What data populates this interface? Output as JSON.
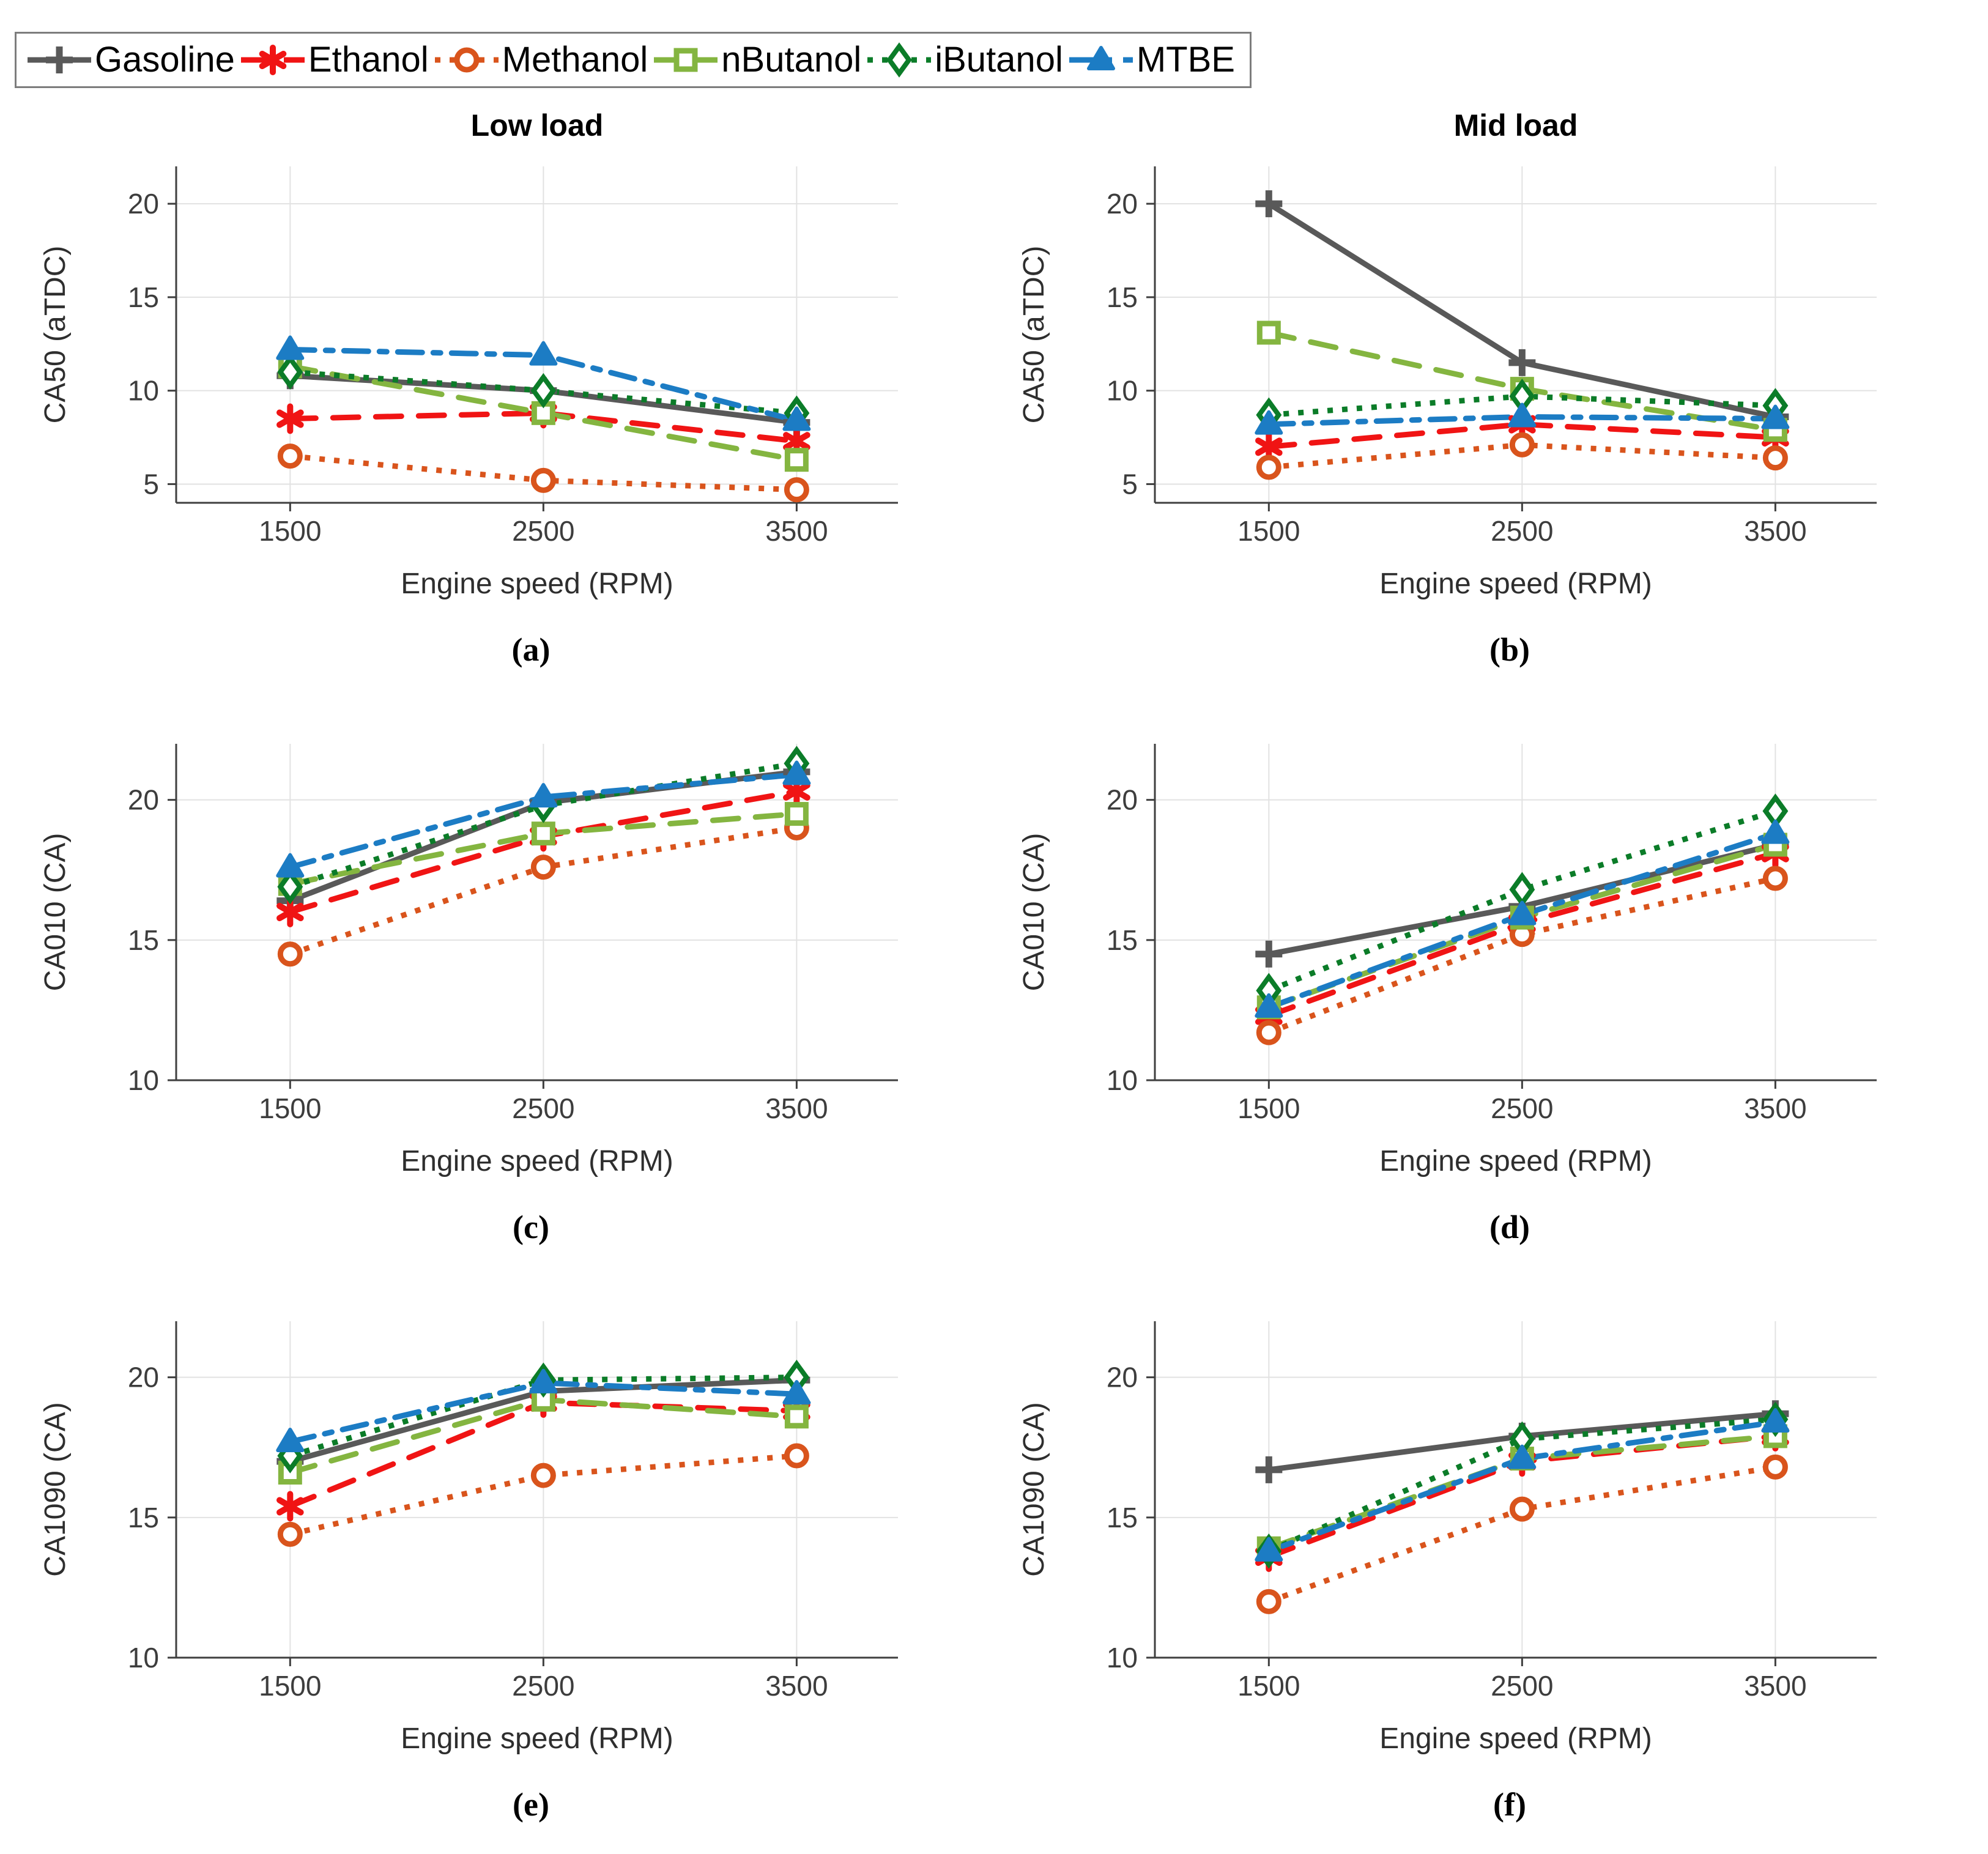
{
  "figure": {
    "column_titles": [
      "Low load",
      "Mid load"
    ],
    "xlabel": "Engine speed (RPM)",
    "x_categories": [
      1500,
      2500,
      3500
    ]
  },
  "legend": {
    "items": [
      {
        "label": "Gasoline",
        "color": "#595959",
        "marker": "plus",
        "dash": "solid"
      },
      {
        "label": "Ethanol",
        "color": "#f01414",
        "marker": "asterisk",
        "dash": "dashed"
      },
      {
        "label": "Methanol",
        "color": "#d9541c",
        "marker": "circle",
        "dash": "dotted"
      },
      {
        "label": "nButanol",
        "color": "#84b540",
        "marker": "square",
        "dash": "dashed"
      },
      {
        "label": "iButanol",
        "color": "#0b7c28",
        "marker": "diamond",
        "dash": "dotted"
      },
      {
        "label": "MTBE",
        "color": "#1c7cc4",
        "marker": "triangle",
        "dash": "dashdot"
      }
    ]
  },
  "chart_data": [
    {
      "id": "a",
      "type": "line",
      "caption": "(a)",
      "title": "Low load",
      "ylabel": "CA50 (aTDC)",
      "xlabel": "Engine speed (RPM)",
      "x": [
        1500,
        2500,
        3500
      ],
      "xticks": [
        1500,
        2500,
        3500
      ],
      "xlim": [
        1050,
        3900
      ],
      "yticks": [
        5,
        10,
        15,
        20
      ],
      "ylim": [
        4,
        22
      ],
      "grid": true,
      "series": [
        {
          "name": "Gasoline",
          "values": [
            10.8,
            10.0,
            8.3
          ]
        },
        {
          "name": "Ethanol",
          "values": [
            8.5,
            8.8,
            7.3
          ]
        },
        {
          "name": "Methanol",
          "values": [
            6.5,
            5.2,
            4.7
          ]
        },
        {
          "name": "nButanol",
          "values": [
            11.3,
            8.8,
            6.3
          ]
        },
        {
          "name": "iButanol",
          "values": [
            11.0,
            10.0,
            8.8
          ]
        },
        {
          "name": "MTBE",
          "values": [
            12.2,
            11.9,
            8.4
          ]
        }
      ]
    },
    {
      "id": "b",
      "type": "line",
      "caption": "(b)",
      "title": "Mid load",
      "ylabel": "CA50 (aTDC)",
      "xlabel": "Engine speed (RPM)",
      "x": [
        1500,
        2500,
        3500
      ],
      "xticks": [
        1500,
        2500,
        3500
      ],
      "xlim": [
        1050,
        3900
      ],
      "yticks": [
        5,
        10,
        15,
        20
      ],
      "ylim": [
        4,
        22
      ],
      "grid": true,
      "series": [
        {
          "name": "Gasoline",
          "values": [
            20.0,
            11.5,
            8.6
          ]
        },
        {
          "name": "Ethanol",
          "values": [
            7.0,
            8.2,
            7.5
          ]
        },
        {
          "name": "Methanol",
          "values": [
            5.9,
            7.1,
            6.4
          ]
        },
        {
          "name": "nButanol",
          "values": [
            13.1,
            10.1,
            7.9
          ]
        },
        {
          "name": "iButanol",
          "values": [
            8.7,
            9.7,
            9.2
          ]
        },
        {
          "name": "MTBE",
          "values": [
            8.2,
            8.6,
            8.5
          ]
        }
      ]
    },
    {
      "id": "c",
      "type": "line",
      "caption": "(c)",
      "title": "",
      "ylabel": "CA010 (CA)",
      "xlabel": "Engine speed (RPM)",
      "x": [
        1500,
        2500,
        3500
      ],
      "xticks": [
        1500,
        2500,
        3500
      ],
      "xlim": [
        1050,
        3900
      ],
      "yticks": [
        10,
        15,
        20
      ],
      "ylim": [
        10,
        22
      ],
      "grid": true,
      "series": [
        {
          "name": "Gasoline",
          "values": [
            16.4,
            19.9,
            21.0
          ]
        },
        {
          "name": "Ethanol",
          "values": [
            16.0,
            18.7,
            20.3
          ]
        },
        {
          "name": "Methanol",
          "values": [
            14.5,
            17.6,
            19.0
          ]
        },
        {
          "name": "nButanol",
          "values": [
            17.0,
            18.8,
            19.5
          ]
        },
        {
          "name": "iButanol",
          "values": [
            16.9,
            19.8,
            21.3
          ]
        },
        {
          "name": "MTBE",
          "values": [
            17.6,
            20.1,
            20.9
          ]
        }
      ]
    },
    {
      "id": "d",
      "type": "line",
      "caption": "(d)",
      "title": "",
      "ylabel": "CA010 (CA)",
      "xlabel": "Engine speed (RPM)",
      "x": [
        1500,
        2500,
        3500
      ],
      "xticks": [
        1500,
        2500,
        3500
      ],
      "xlim": [
        1050,
        3900
      ],
      "yticks": [
        10,
        15,
        20
      ],
      "ylim": [
        10,
        22
      ],
      "grid": true,
      "series": [
        {
          "name": "Gasoline",
          "values": [
            14.5,
            16.2,
            18.4
          ]
        },
        {
          "name": "Ethanol",
          "values": [
            12.3,
            15.6,
            18.1
          ]
        },
        {
          "name": "Methanol",
          "values": [
            11.7,
            15.2,
            17.2
          ]
        },
        {
          "name": "nButanol",
          "values": [
            12.6,
            15.8,
            18.4
          ]
        },
        {
          "name": "iButanol",
          "values": [
            13.2,
            16.8,
            19.6
          ]
        },
        {
          "name": "MTBE",
          "values": [
            12.6,
            15.9,
            18.8
          ]
        }
      ]
    },
    {
      "id": "e",
      "type": "line",
      "caption": "(e)",
      "title": "",
      "ylabel": "CA1090 (CA)",
      "xlabel": "Engine speed (RPM)",
      "x": [
        1500,
        2500,
        3500
      ],
      "xticks": [
        1500,
        2500,
        3500
      ],
      "xlim": [
        1050,
        3900
      ],
      "yticks": [
        10,
        15,
        20
      ],
      "ylim": [
        10,
        22
      ],
      "grid": true,
      "series": [
        {
          "name": "Gasoline",
          "values": [
            17.0,
            19.5,
            19.9
          ]
        },
        {
          "name": "Ethanol",
          "values": [
            15.4,
            19.1,
            18.8
          ]
        },
        {
          "name": "Methanol",
          "values": [
            14.4,
            16.5,
            17.2
          ]
        },
        {
          "name": "nButanol",
          "values": [
            16.6,
            19.2,
            18.6
          ]
        },
        {
          "name": "iButanol",
          "values": [
            17.2,
            19.9,
            20.0
          ]
        },
        {
          "name": "MTBE",
          "values": [
            17.7,
            19.8,
            19.4
          ]
        }
      ]
    },
    {
      "id": "f",
      "type": "line",
      "caption": "(f)",
      "title": "",
      "ylabel": "CA1090 (CA)",
      "xlabel": "Engine speed (RPM)",
      "x": [
        1500,
        2500,
        3500
      ],
      "xticks": [
        1500,
        2500,
        3500
      ],
      "xlim": [
        1050,
        3900
      ],
      "yticks": [
        10,
        15,
        20
      ],
      "ylim": [
        10,
        22
      ],
      "grid": true,
      "series": [
        {
          "name": "Gasoline",
          "values": [
            16.7,
            17.9,
            18.7
          ]
        },
        {
          "name": "Ethanol",
          "values": [
            13.6,
            17.0,
            17.9
          ]
        },
        {
          "name": "Methanol",
          "values": [
            12.0,
            15.3,
            16.8
          ]
        },
        {
          "name": "nButanol",
          "values": [
            13.9,
            17.1,
            17.9
          ]
        },
        {
          "name": "iButanol",
          "values": [
            13.8,
            17.8,
            18.5
          ]
        },
        {
          "name": "MTBE",
          "values": [
            13.8,
            17.1,
            18.4
          ]
        }
      ]
    }
  ]
}
